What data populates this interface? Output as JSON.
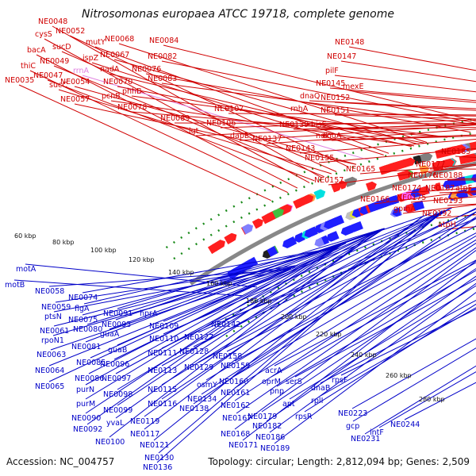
{
  "title": "Nitrosomonas europaea ATCC 19718, complete genome",
  "footer": {
    "accession": "Accession: NC_004757",
    "topology": "Topology: circular; Length: 2,812,094 bp; Genes: 2,509"
  },
  "kbp_ticks": [
    "60 kbp",
    "80 kbp",
    "100 kbp",
    "120 kbp",
    "140 kbp",
    "160 kbp",
    "180 kbp",
    "200 kbp",
    "220 kbp",
    "240 kbp",
    "260 kbp",
    "280 kbp"
  ],
  "top_labels": [
    "NE0048",
    "cysS",
    "NE0052",
    "bacA",
    "sucD",
    "thiC",
    "NE0049",
    "NE0047",
    "NE0035",
    "sucC",
    "rrnA",
    "NE0054",
    "NE0057",
    "mutY",
    "ispZ",
    "NE0068",
    "NE0067",
    "nadA",
    "NE0070",
    "pcnB",
    "phhB",
    "NE0078",
    "NE0084",
    "NE0082",
    "NE0076",
    "NE0083",
    "NE0089",
    "lgt",
    "NE0107",
    "NE0106",
    "dapE",
    "NE0137",
    "NE0148",
    "NE0147",
    "pilF",
    "mexE",
    "NE0145",
    "dnaQ",
    "NE0152",
    "rnhA",
    "NE0151",
    "NE0139",
    "hisS",
    "ndk",
    "engA",
    "NE0143",
    "NE0155",
    "NE0157",
    "NE0165",
    "NE0166",
    "NE0185",
    "NE0177",
    "NE0176",
    "NE0188",
    "NE0174",
    "NE0187",
    "atpF",
    "NE0175",
    "NE0193",
    "gpmA",
    "NE0192",
    "atpH"
  ],
  "bottom_labels": [
    "motA",
    "motB",
    "NE0058",
    "NE0059",
    "ptsN",
    "NE0061",
    "rpoN1",
    "NE0063",
    "NE0064",
    "NE0065",
    "NE0074",
    "flgA",
    "NE0075",
    "NE0080",
    "NE0081",
    "NE0085",
    "NE0086",
    "purN",
    "purM",
    "NE0090",
    "NE0092",
    "NE0100",
    "NE0091",
    "NE0093",
    "guaA",
    "guaB",
    "NE0096",
    "NE0097",
    "NE0098",
    "NE0099",
    "yvaL",
    "NE0117",
    "NE0121",
    "NE0130",
    "NE0136",
    "hprA",
    "NE0109",
    "NE0110",
    "NE0111",
    "NE0113",
    "NE0115",
    "NE0116",
    "NE0119",
    "NE0127",
    "NE0128",
    "NE0129",
    "osmY",
    "NE0134",
    "NE0138",
    "NE0142",
    "NE0158",
    "NE0159",
    "NE0160",
    "NE0161",
    "NE0162",
    "NE0167",
    "NE0168",
    "NE0171",
    "acrA",
    "oprM",
    "pnp",
    "serS",
    "apt",
    "NE0179",
    "NE0182",
    "NE0186",
    "NE0189",
    "rpsR",
    "rplI",
    "dnaB",
    "rpsF",
    "NE0223",
    "gcp",
    "NE0231",
    "intF",
    "NE0244"
  ],
  "colors": {
    "forward_label": "#d00000",
    "reverse_label": "#0000c8",
    "rrna_label": "#e080e0",
    "forward_feature": "#ff1f1f",
    "reverse_feature": "#1f1fff",
    "backbone": "#888888",
    "gc_dots": "#1a8a1a"
  }
}
